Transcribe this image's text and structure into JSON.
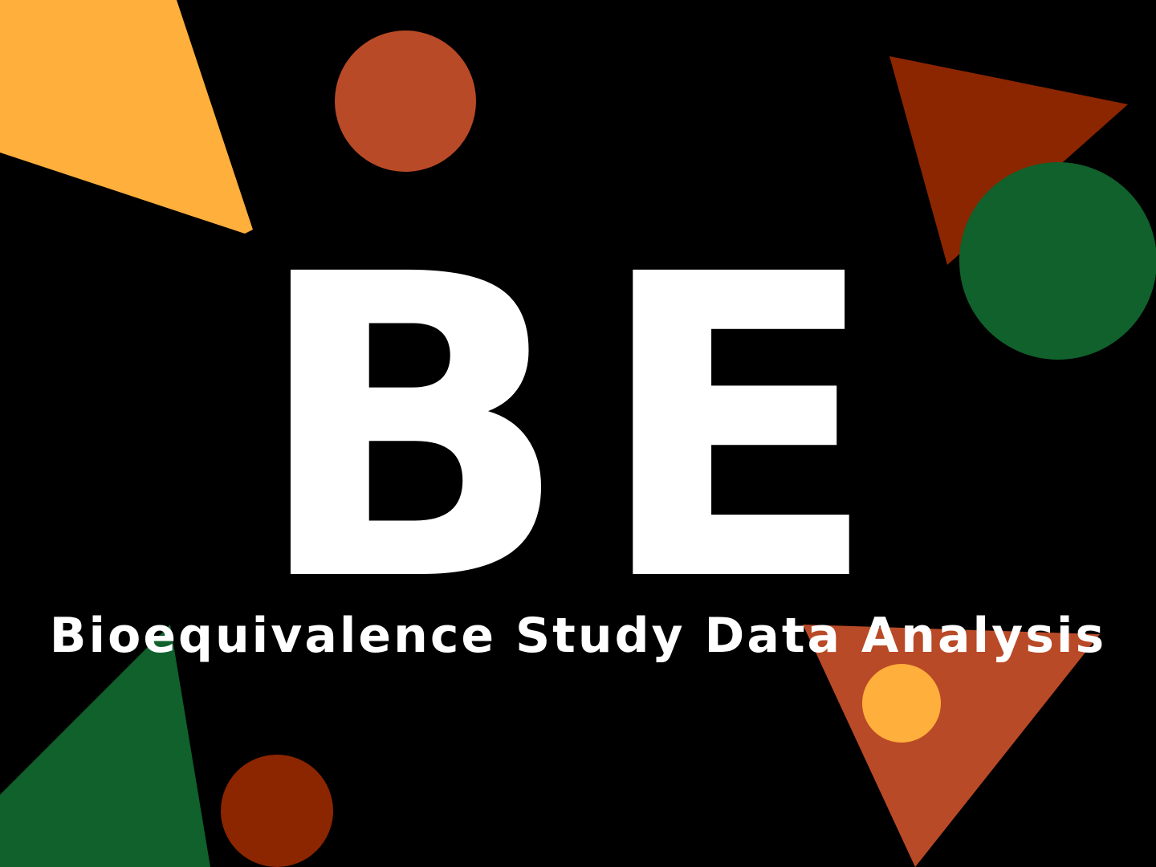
{
  "title": {
    "letters": "BE",
    "subtitle": "Bioequivalence Study Data Analysis"
  },
  "colors": {
    "background": "#000000",
    "text": "#ffffff",
    "yellow": "#FFAF3C",
    "orange": "#B94A27",
    "dark_red": "#8C2600",
    "green": "#10612C"
  }
}
